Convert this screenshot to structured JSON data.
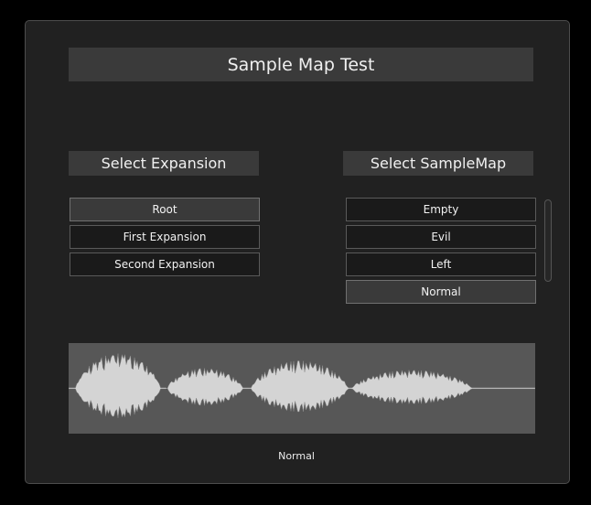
{
  "title": "Sample Map Test",
  "expansion": {
    "header": "Select Expansion",
    "items": [
      "Root",
      "First Expansion",
      "Second Expansion"
    ],
    "selected": "Root"
  },
  "samplemap": {
    "header": "Select SampleMap",
    "items": [
      "Empty",
      "Evil",
      "Left",
      "Normal"
    ],
    "selected": "Normal"
  },
  "status_label": "Normal",
  "colors": {
    "panel": "#212121",
    "header": "#3a3a3a",
    "waveform_bg": "#575757",
    "waveform_fill": "#d4d4d4"
  }
}
